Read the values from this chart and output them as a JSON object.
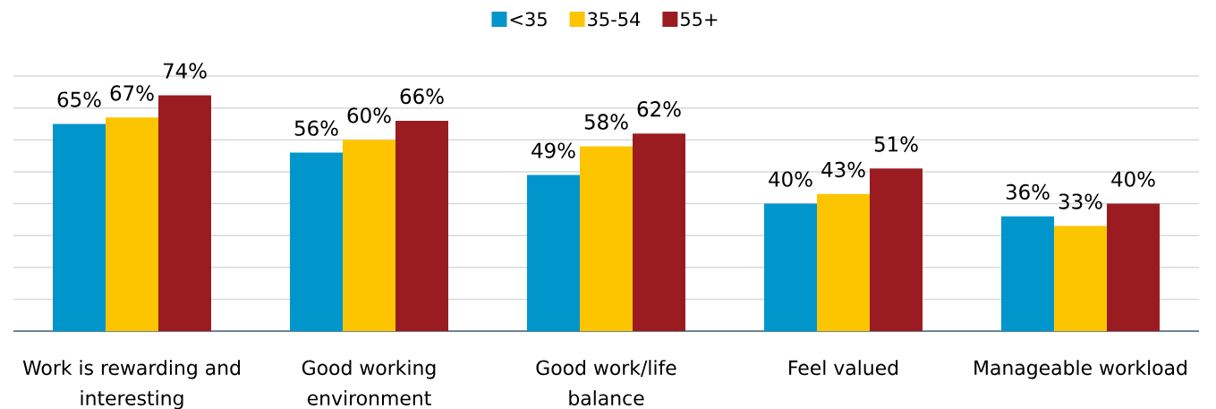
{
  "chart_data": {
    "type": "bar",
    "categories": [
      "Work is rewarding and interesting",
      "Good working environment",
      "Good work/life balance",
      "Feel valued",
      "Manageable workload"
    ],
    "series": [
      {
        "name": "<35",
        "color": "#0096cc",
        "values": [
          65,
          56,
          49,
          40,
          36
        ],
        "value_labels": [
          "65%",
          "56%",
          "49%",
          "40%",
          "36%"
        ]
      },
      {
        "name": "35-54",
        "color": "#fdc500",
        "values": [
          67,
          60,
          58,
          43,
          33
        ],
        "value_labels": [
          "67%",
          "60%",
          "58%",
          "43%",
          "33%"
        ]
      },
      {
        "name": "55+",
        "color": "#9a1c20",
        "values": [
          74,
          66,
          62,
          51,
          40
        ],
        "value_labels": [
          "74%",
          "66%",
          "62%",
          "51%",
          "40%"
        ]
      }
    ],
    "ylim": [
      0,
      80
    ],
    "yticks": [
      {
        "value": 0,
        "label": null
      },
      {
        "value": 10,
        "label": null
      },
      {
        "value": 20,
        "label": null
      },
      {
        "value": 30,
        "label": null
      },
      {
        "value": 40,
        "label": null
      },
      {
        "value": 50,
        "label": null
      },
      {
        "value": 60,
        "label": null
      },
      {
        "value": 70,
        "label": null
      },
      {
        "value": 80,
        "label": null
      }
    ],
    "grid": "y",
    "legend": "top",
    "tick_labels": "x"
  }
}
